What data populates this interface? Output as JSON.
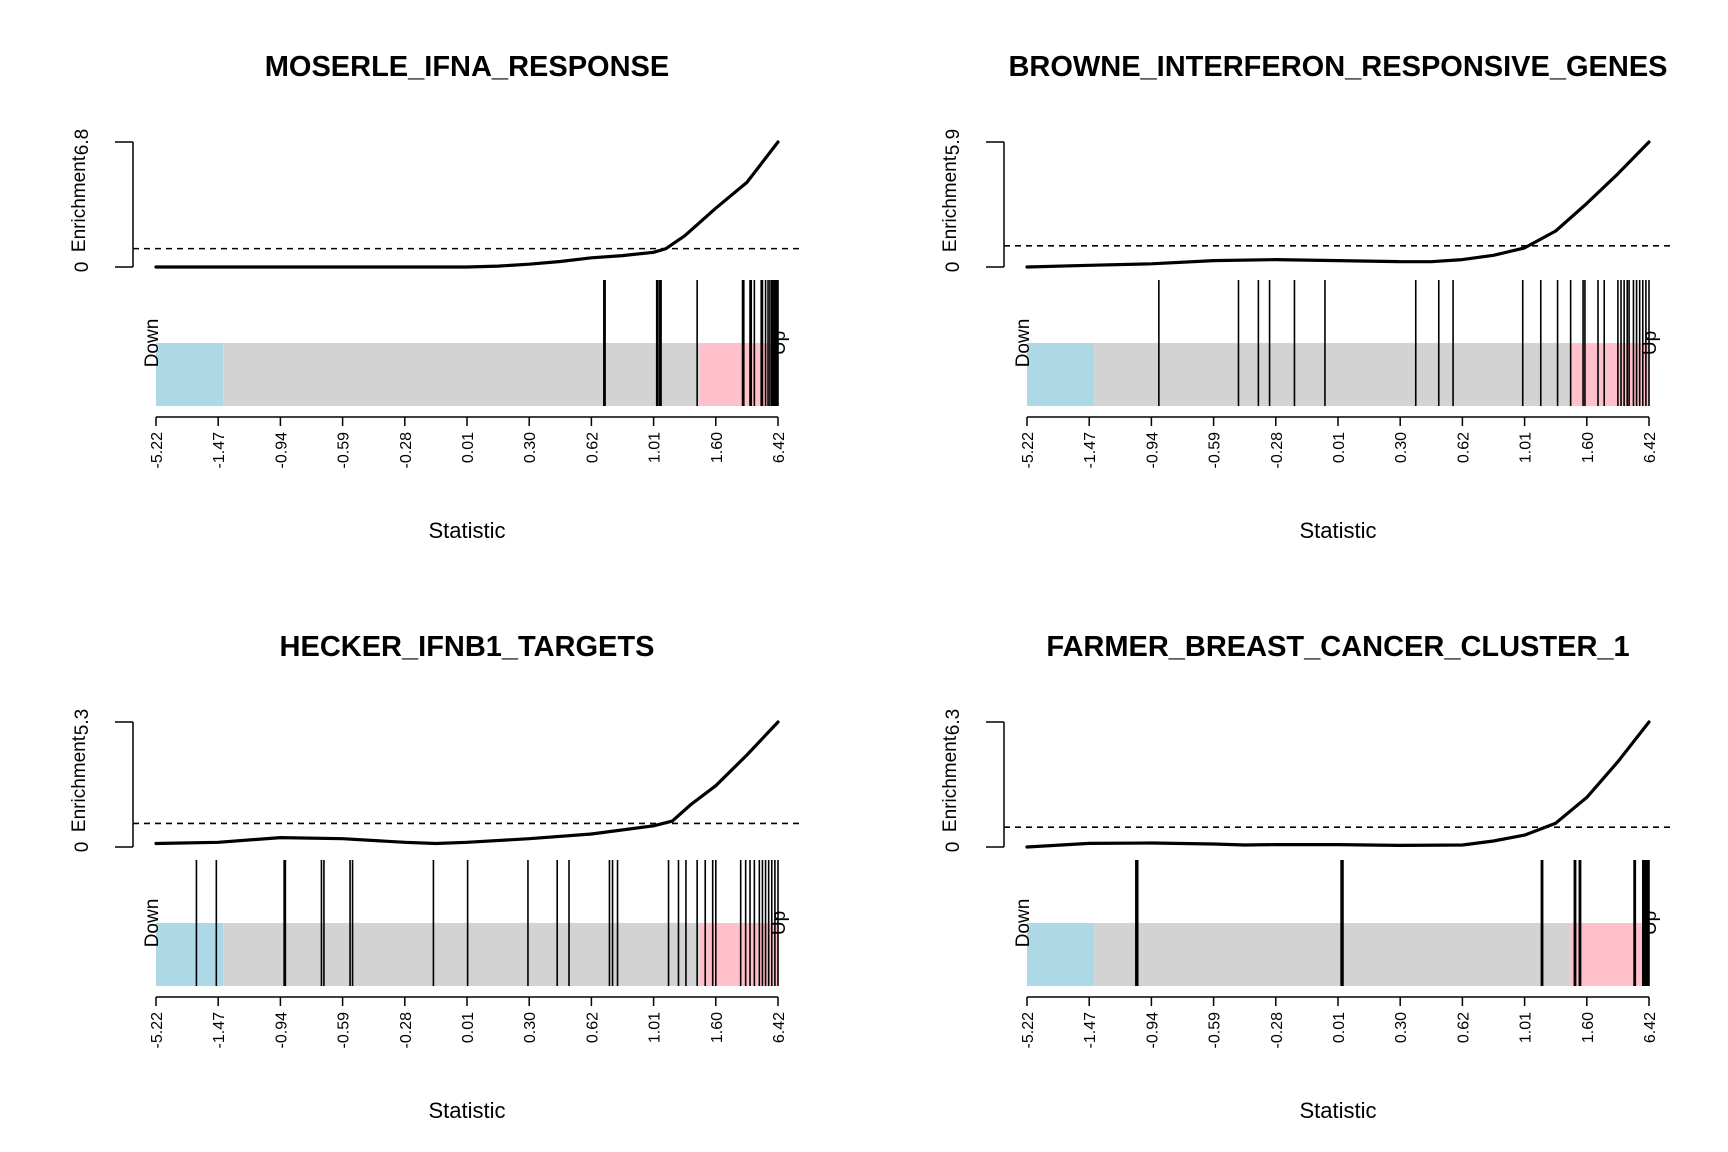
{
  "chart_data": [
    {
      "type": "barcode",
      "title": "MOSERLE_IFNA_RESPONSE",
      "xlabel": "Statistic",
      "ylabel": "Enrichment",
      "ytick_labels": [
        "0",
        "6.8"
      ],
      "ylim": [
        0,
        6.8
      ],
      "threshold": 1.0,
      "x_tick_labels": [
        "-5.22",
        "-1.47",
        "-0.94",
        "-0.59",
        "-0.28",
        "0.01",
        "0.30",
        "0.62",
        "1.01",
        "1.60",
        "6.42"
      ],
      "down_label": "Down",
      "up_label": "Up",
      "colors": {
        "down": "#add8e6",
        "middle": "#d3d3d3",
        "up": "#ffc0cb",
        "line": "#000000"
      },
      "down_end_rank": 0.108,
      "up_start_rank": 0.874,
      "bar_ranks": [
        0.72,
        0.721,
        0.722,
        0.805,
        0.807,
        0.81,
        0.812,
        0.87,
        0.943,
        0.945,
        0.955,
        0.957,
        0.962,
        0.973,
        0.975,
        0.98,
        0.984,
        0.987,
        0.99,
        0.992,
        0.994,
        0.996,
        0.998,
        1.0
      ],
      "enrichment_curve": [
        [
          0.0,
          0.0
        ],
        [
          0.1,
          0.0
        ],
        [
          0.2,
          0.0
        ],
        [
          0.3,
          0.0
        ],
        [
          0.4,
          0.0
        ],
        [
          0.5,
          0.0
        ],
        [
          0.55,
          0.05
        ],
        [
          0.6,
          0.15
        ],
        [
          0.65,
          0.3
        ],
        [
          0.7,
          0.5
        ],
        [
          0.75,
          0.62
        ],
        [
          0.8,
          0.8
        ],
        [
          0.82,
          1.0
        ],
        [
          0.85,
          1.7
        ],
        [
          0.9,
          3.2
        ],
        [
          0.95,
          4.6
        ],
        [
          1.0,
          6.8
        ]
      ]
    },
    {
      "type": "barcode",
      "title": "BROWNE_INTERFERON_RESPONSIVE_GENES",
      "xlabel": "Statistic",
      "ylabel": "Enrichment",
      "ytick_labels": [
        "0",
        "5.9"
      ],
      "ylim": [
        0,
        5.9
      ],
      "threshold": 1.0,
      "x_tick_labels": [
        "-5.22",
        "-1.47",
        "-0.94",
        "-0.59",
        "-0.28",
        "0.01",
        "0.30",
        "0.62",
        "1.01",
        "1.60",
        "6.42"
      ],
      "down_label": "Down",
      "up_label": "Up",
      "colors": {
        "down": "#add8e6",
        "middle": "#d3d3d3",
        "up": "#ffc0cb",
        "line": "#000000"
      },
      "down_end_rank": 0.108,
      "up_start_rank": 0.874,
      "bar_ranks": [
        0.212,
        0.34,
        0.372,
        0.39,
        0.43,
        0.479,
        0.625,
        0.662,
        0.685,
        0.797,
        0.826,
        0.853,
        0.874,
        0.894,
        0.897,
        0.918,
        0.928,
        0.95,
        0.955,
        0.96,
        0.965,
        0.968,
        0.975,
        0.98,
        0.985,
        0.99,
        0.995,
        1.0
      ],
      "enrichment_curve": [
        [
          0.0,
          0.0
        ],
        [
          0.1,
          0.08
        ],
        [
          0.2,
          0.15
        ],
        [
          0.3,
          0.3
        ],
        [
          0.4,
          0.35
        ],
        [
          0.5,
          0.3
        ],
        [
          0.6,
          0.25
        ],
        [
          0.65,
          0.25
        ],
        [
          0.7,
          0.35
        ],
        [
          0.75,
          0.55
        ],
        [
          0.8,
          0.9
        ],
        [
          0.85,
          1.7
        ],
        [
          0.9,
          3.0
        ],
        [
          0.95,
          4.4
        ],
        [
          1.0,
          5.9
        ]
      ]
    },
    {
      "type": "barcode",
      "title": "HECKER_IFNB1_TARGETS",
      "xlabel": "Statistic",
      "ylabel": "Enrichment",
      "ytick_labels": [
        "0",
        "5.3"
      ],
      "ylim": [
        0,
        5.3
      ],
      "threshold": 1.0,
      "x_tick_labels": [
        "-5.22",
        "-1.47",
        "-0.94",
        "-0.59",
        "-0.28",
        "0.01",
        "0.30",
        "0.62",
        "1.01",
        "1.60",
        "6.42"
      ],
      "down_label": "Down",
      "up_label": "Up",
      "colors": {
        "down": "#add8e6",
        "middle": "#d3d3d3",
        "up": "#ffc0cb",
        "line": "#000000"
      },
      "down_end_rank": 0.108,
      "up_start_rank": 0.874,
      "bar_ranks": [
        0.065,
        0.097,
        0.206,
        0.208,
        0.266,
        0.27,
        0.312,
        0.316,
        0.446,
        0.501,
        0.598,
        0.645,
        0.664,
        0.729,
        0.734,
        0.742,
        0.824,
        0.84,
        0.852,
        0.87,
        0.883,
        0.895,
        0.9,
        0.94,
        0.948,
        0.955,
        0.962,
        0.97,
        0.975,
        0.98,
        0.985,
        0.99,
        0.995,
        1.0
      ],
      "enrichment_curve": [
        [
          0.0,
          0.15
        ],
        [
          0.1,
          0.2
        ],
        [
          0.2,
          0.4
        ],
        [
          0.3,
          0.35
        ],
        [
          0.4,
          0.2
        ],
        [
          0.45,
          0.15
        ],
        [
          0.5,
          0.2
        ],
        [
          0.6,
          0.35
        ],
        [
          0.7,
          0.55
        ],
        [
          0.8,
          0.9
        ],
        [
          0.83,
          1.1
        ],
        [
          0.86,
          1.8
        ],
        [
          0.9,
          2.6
        ],
        [
          0.95,
          3.9
        ],
        [
          1.0,
          5.3
        ]
      ]
    },
    {
      "type": "barcode",
      "title": "FARMER_BREAST_CANCER_CLUSTER_1",
      "xlabel": "Statistic",
      "ylabel": "Enrichment",
      "ytick_labels": [
        "0",
        "6.3"
      ],
      "ylim": [
        0,
        6.3
      ],
      "threshold": 1.0,
      "x_tick_labels": [
        "-5.22",
        "-1.47",
        "-0.94",
        "-0.59",
        "-0.28",
        "0.01",
        "0.30",
        "0.62",
        "1.01",
        "1.60",
        "6.42"
      ],
      "down_label": "Down",
      "up_label": "Up",
      "colors": {
        "down": "#add8e6",
        "middle": "#d3d3d3",
        "up": "#ffc0cb",
        "line": "#000000"
      },
      "down_end_rank": 0.108,
      "up_start_rank": 0.874,
      "bar_ranks": [
        0.175,
        0.177,
        0.178,
        0.505,
        0.507,
        0.508,
        0.827,
        0.829,
        0.88,
        0.882,
        0.888,
        0.89,
        0.976,
        0.978,
        0.99,
        0.992,
        0.994,
        0.996,
        0.998,
        1.0
      ],
      "enrichment_curve": [
        [
          0.0,
          0.0
        ],
        [
          0.1,
          0.18
        ],
        [
          0.2,
          0.2
        ],
        [
          0.3,
          0.15
        ],
        [
          0.35,
          0.1
        ],
        [
          0.4,
          0.12
        ],
        [
          0.5,
          0.12
        ],
        [
          0.6,
          0.08
        ],
        [
          0.7,
          0.1
        ],
        [
          0.75,
          0.3
        ],
        [
          0.8,
          0.6
        ],
        [
          0.85,
          1.2
        ],
        [
          0.9,
          2.5
        ],
        [
          0.95,
          4.3
        ],
        [
          1.0,
          6.3
        ]
      ]
    }
  ]
}
